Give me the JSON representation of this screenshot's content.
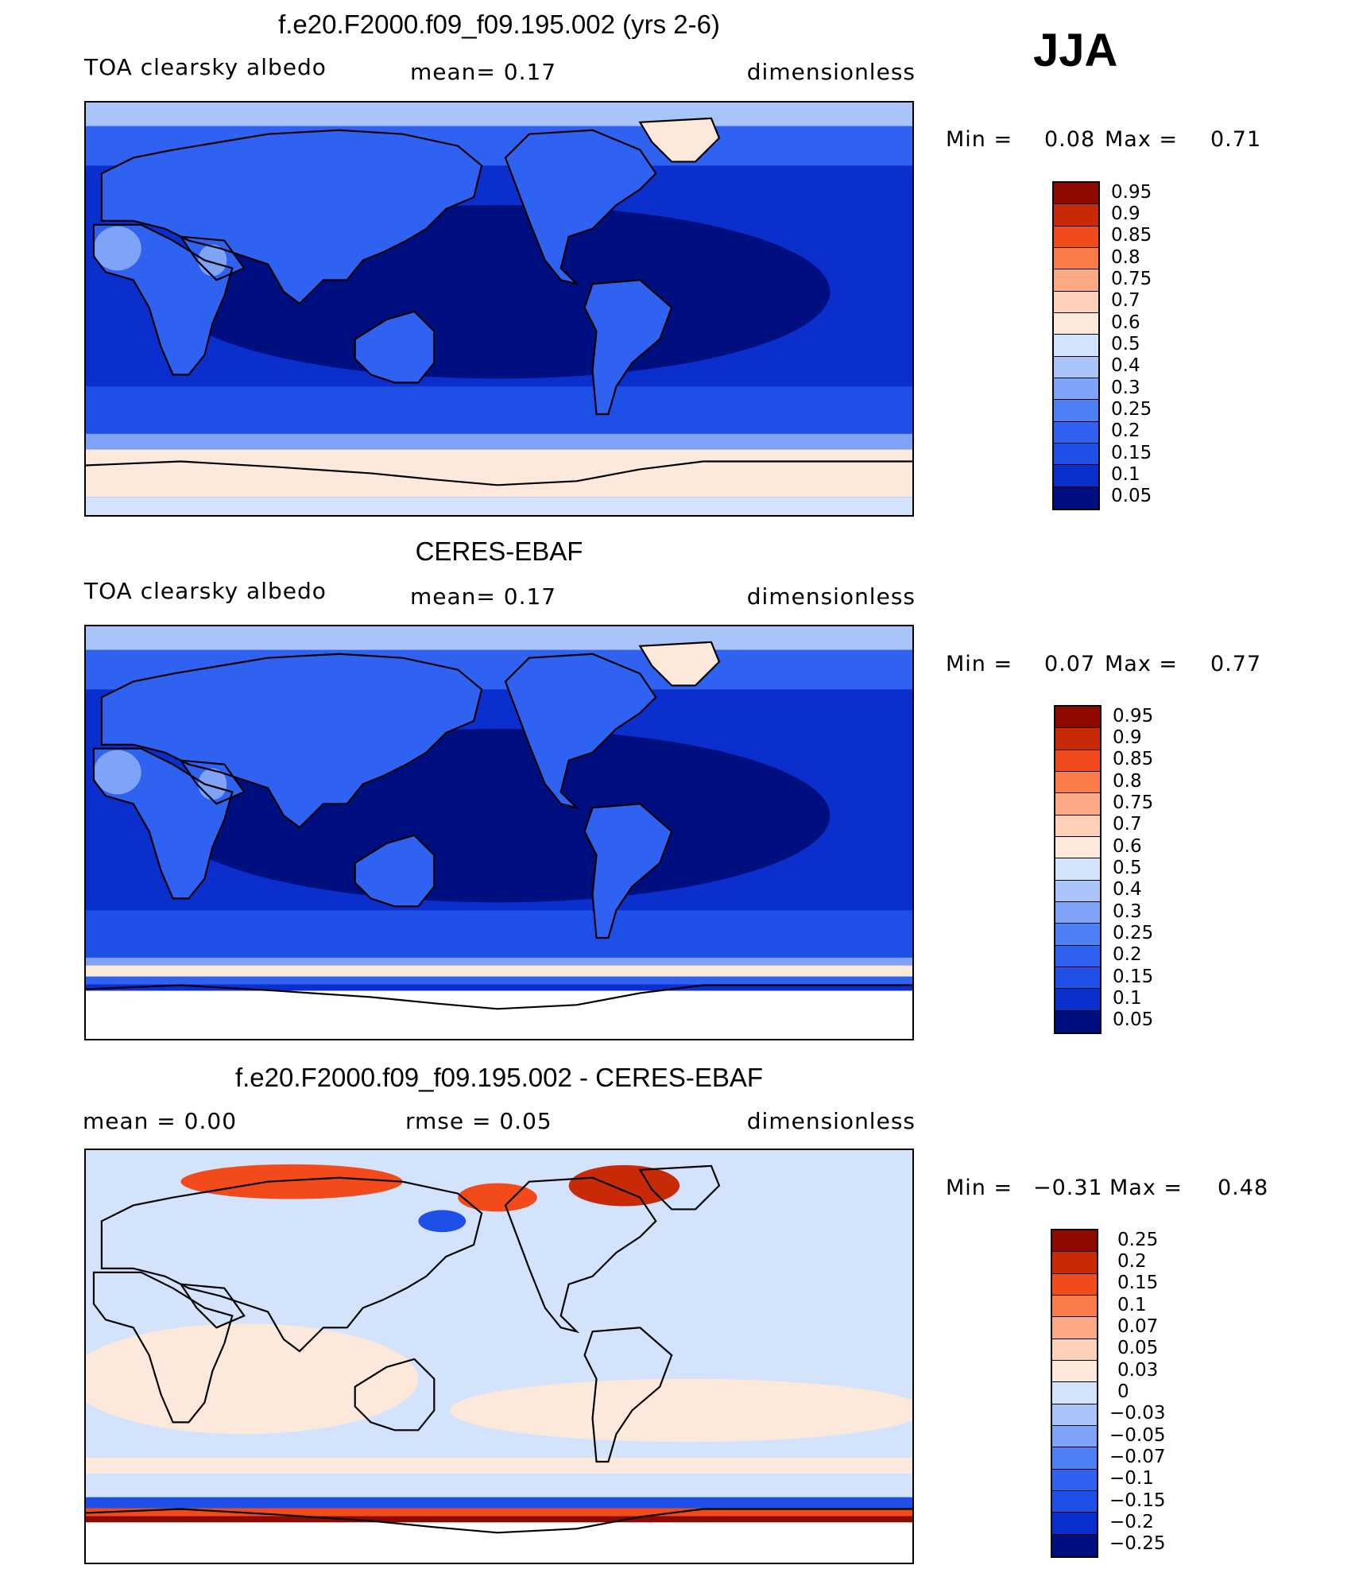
{
  "season": "JJA",
  "colors": {
    "abs_scale": [
      "#000f80",
      "#0a2fcc",
      "#1e4fe6",
      "#2f62f0",
      "#4d7ff5",
      "#7ea3f7",
      "#a9c4f9",
      "#d2e3fb",
      "#fde9dc",
      "#fdd0b7",
      "#fcaa86",
      "#fc7b4a",
      "#f24a1a",
      "#c82a08",
      "#8e0a00"
    ],
    "diff_scale": [
      "#000f80",
      "#0a2fcc",
      "#1e4fe6",
      "#2f62f0",
      "#4d7ff5",
      "#7ea3f7",
      "#a9c4f9",
      "#d2e3fb",
      "#fde9dc",
      "#fdd0b7",
      "#fcaa86",
      "#fc7b4a",
      "#f24a1a",
      "#c82a08",
      "#8e0a00"
    ]
  },
  "panels": [
    {
      "title": "f.e20.F2000.f09_f09.195.002 (yrs 2-6)",
      "left_label": "TOA clearsky albedo",
      "center_label": "mean=    0.17",
      "right_label": "dimensionless",
      "min_label": "Min =",
      "min_value": "0.08",
      "max_label": "Max =",
      "max_value": "0.71",
      "scale": "abs",
      "ticks": [
        "0.95",
        "0.9",
        "0.85",
        "0.8",
        "0.75",
        "0.7",
        "0.6",
        "0.5",
        "0.4",
        "0.3",
        "0.25",
        "0.2",
        "0.15",
        "0.1",
        "0.05"
      ],
      "field": "model"
    },
    {
      "title": "CERES-EBAF",
      "left_label": "TOA clearsky albedo",
      "center_label": "mean=    0.17",
      "right_label": "dimensionless",
      "min_label": "Min =",
      "min_value": "0.07",
      "max_label": "Max =",
      "max_value": "0.77",
      "scale": "abs",
      "ticks": [
        "0.95",
        "0.9",
        "0.85",
        "0.8",
        "0.75",
        "0.7",
        "0.6",
        "0.5",
        "0.4",
        "0.3",
        "0.25",
        "0.2",
        "0.15",
        "0.1",
        "0.05"
      ],
      "field": "obs"
    },
    {
      "title": "f.e20.F2000.f09_f09.195.002 - CERES-EBAF",
      "left_label": "mean =     0.00",
      "center_label": "rmse =     0.05",
      "right_label": "dimensionless",
      "min_label": "Min =",
      "min_value": "−0.31",
      "max_label": "Max =",
      "max_value": "0.48",
      "scale": "diff",
      "ticks": [
        "0.25",
        "0.2",
        "0.15",
        "0.1",
        "0.07",
        "0.05",
        "0.03",
        "0",
        "−0.03",
        "−0.05",
        "−0.07",
        "−0.1",
        "−0.15",
        "−0.2",
        "−0.25"
      ],
      "field": "diff"
    }
  ]
}
